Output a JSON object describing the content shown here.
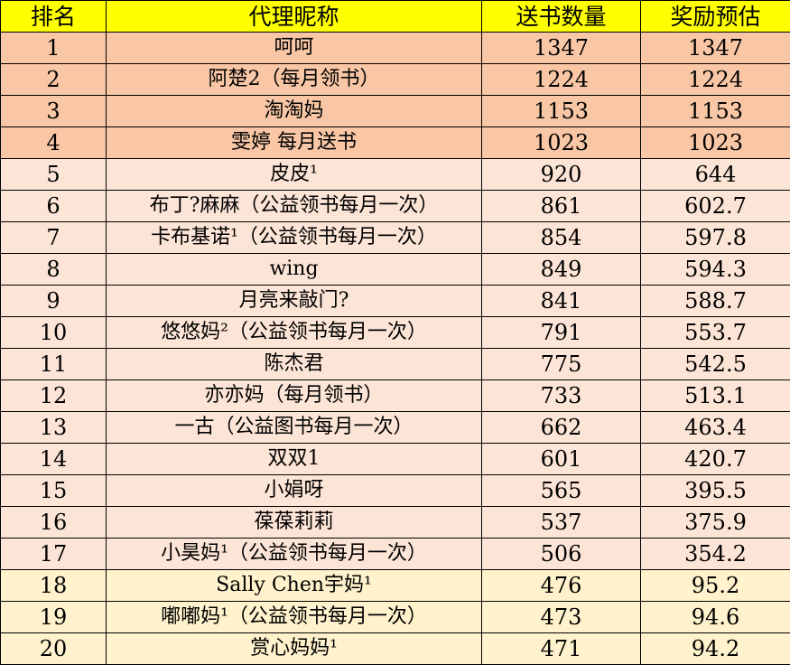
{
  "table": {
    "headers": [
      "排名",
      "代理昵称",
      "送书数量",
      "奖励预估"
    ],
    "colors": {
      "header": "#ffff00",
      "top": "#f9c7a6",
      "mid": "#fce4d6",
      "low": "#fff2cc"
    },
    "rows": [
      {
        "rank": "1",
        "name": "呵呵",
        "count": "1347",
        "reward": "1347",
        "tier": "top"
      },
      {
        "rank": "2",
        "name": "阿楚2（每月领书）",
        "count": "1224",
        "reward": "1224",
        "tier": "top"
      },
      {
        "rank": "3",
        "name": "淘淘妈",
        "count": "1153",
        "reward": "1153",
        "tier": "top"
      },
      {
        "rank": "4",
        "name": "雯婷 每月送书",
        "count": "1023",
        "reward": "1023",
        "tier": "top"
      },
      {
        "rank": "5",
        "name": "皮皮¹",
        "count": "920",
        "reward": "644",
        "tier": "mid"
      },
      {
        "rank": "6",
        "name": "布丁?麻麻（公益领书每月一次）",
        "count": "861",
        "reward": "602.7",
        "tier": "mid"
      },
      {
        "rank": "7",
        "name": "卡布基诺¹（公益领书每月一次）",
        "count": "854",
        "reward": "597.8",
        "tier": "mid"
      },
      {
        "rank": "8",
        "name": "wing",
        "count": "849",
        "reward": "594.3",
        "tier": "mid"
      },
      {
        "rank": "9",
        "name": "月亮来敲门?",
        "count": "841",
        "reward": "588.7",
        "tier": "mid"
      },
      {
        "rank": "10",
        "name": "悠悠妈²（公益领书每月一次）",
        "count": "791",
        "reward": "553.7",
        "tier": "mid"
      },
      {
        "rank": "11",
        "name": "陈杰君",
        "count": "775",
        "reward": "542.5",
        "tier": "mid"
      },
      {
        "rank": "12",
        "name": "亦亦妈（每月领书）",
        "count": "733",
        "reward": "513.1",
        "tier": "mid"
      },
      {
        "rank": "13",
        "name": "一古（公益图书每月一次）",
        "count": "662",
        "reward": "463.4",
        "tier": "mid"
      },
      {
        "rank": "14",
        "name": "双双1",
        "count": "601",
        "reward": "420.7",
        "tier": "mid"
      },
      {
        "rank": "15",
        "name": "小娟呀",
        "count": "565",
        "reward": "395.5",
        "tier": "mid"
      },
      {
        "rank": "16",
        "name": "葆葆莉莉",
        "count": "537",
        "reward": "375.9",
        "tier": "mid"
      },
      {
        "rank": "17",
        "name": "小昊妈¹（公益领书每月一次）",
        "count": "506",
        "reward": "354.2",
        "tier": "mid"
      },
      {
        "rank": "18",
        "name": "Sally Chen宇妈¹",
        "count": "476",
        "reward": "95.2",
        "tier": "low"
      },
      {
        "rank": "19",
        "name": "嘟嘟妈¹（公益领书每月一次）",
        "count": "473",
        "reward": "94.6",
        "tier": "low"
      },
      {
        "rank": "20",
        "name": "赏心妈妈¹",
        "count": "471",
        "reward": "94.2",
        "tier": "low"
      }
    ]
  }
}
